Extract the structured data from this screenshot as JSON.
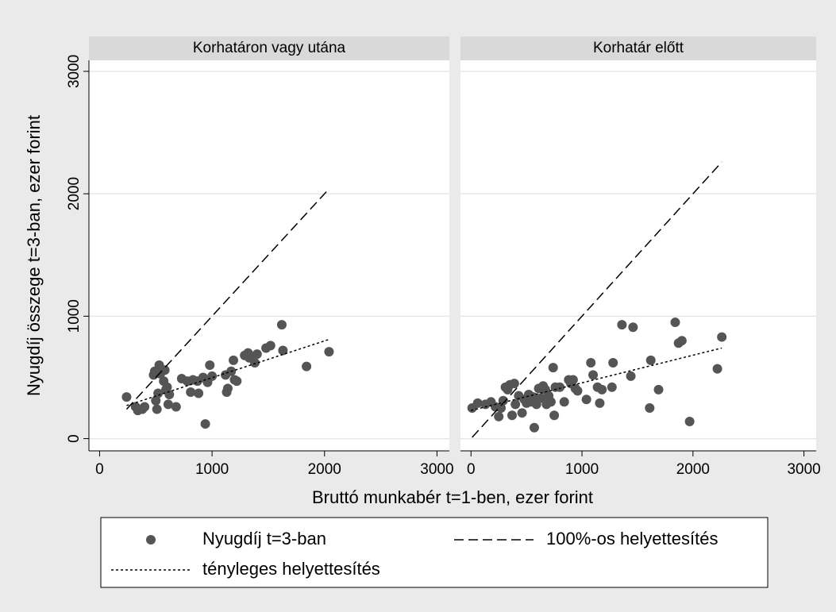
{
  "chart_data": [
    {
      "type": "scatter",
      "title": "Korhatáron vagy utána",
      "xlim": [
        -95,
        3110
      ],
      "ylim": [
        -100,
        3090
      ],
      "xticks": [
        0,
        1000,
        2000,
        3000
      ],
      "yticks": [
        0,
        1000,
        2000,
        3000
      ],
      "grid": true,
      "series": [
        {
          "name": "Nyugdíj t=3-ban",
          "color": "#555555",
          "style": "points",
          "x": [
            240,
            320,
            340,
            380,
            400,
            480,
            490,
            500,
            510,
            520,
            530,
            540,
            570,
            580,
            590,
            600,
            610,
            620,
            680,
            730,
            780,
            810,
            830,
            870,
            880,
            920,
            940,
            960,
            980,
            1000,
            1120,
            1130,
            1140,
            1170,
            1190,
            1200,
            1220,
            1290,
            1320,
            1330,
            1380,
            1400,
            1480,
            1520,
            1620,
            1630,
            1840,
            2040
          ],
          "values": [
            340,
            260,
            230,
            240,
            260,
            520,
            550,
            310,
            240,
            370,
            600,
            530,
            470,
            560,
            400,
            420,
            280,
            360,
            260,
            490,
            470,
            380,
            480,
            470,
            370,
            500,
            120,
            460,
            600,
            510,
            520,
            380,
            410,
            550,
            640,
            480,
            470,
            680,
            700,
            660,
            620,
            690,
            740,
            760,
            930,
            720,
            590,
            710
          ]
        },
        {
          "name": "100%-os helyettesítés",
          "color": "#000000",
          "style": "dashed",
          "x": [
            240,
            2040
          ],
          "values": [
            240,
            2040
          ]
        },
        {
          "name": "tényleges helyettesítés",
          "color": "#000000",
          "style": "dotted",
          "x": [
            240,
            2040
          ],
          "values": [
            270,
            810
          ]
        }
      ]
    },
    {
      "type": "scatter",
      "title": "Korhatár előtt",
      "xlim": [
        -95,
        3110
      ],
      "ylim": [
        -100,
        3090
      ],
      "xticks": [
        0,
        1000,
        2000,
        3000
      ],
      "yticks": [
        0,
        1000,
        2000,
        3000
      ],
      "grid": true,
      "series": [
        {
          "name": "Nyugdíj t=3-ban",
          "color": "#555555",
          "style": "points",
          "x": [
            10,
            60,
            130,
            180,
            220,
            250,
            270,
            290,
            310,
            330,
            350,
            370,
            390,
            400,
            430,
            460,
            480,
            500,
            520,
            540,
            560,
            570,
            590,
            610,
            630,
            650,
            670,
            680,
            700,
            720,
            740,
            750,
            760,
            800,
            840,
            880,
            900,
            920,
            940,
            960,
            1040,
            1080,
            1100,
            1140,
            1160,
            1180,
            1270,
            1280,
            1360,
            1440,
            1460,
            1610,
            1620,
            1690,
            1840,
            1870,
            1900,
            1970,
            2220,
            2260
          ],
          "values": [
            250,
            290,
            280,
            300,
            260,
            180,
            250,
            310,
            420,
            400,
            440,
            190,
            450,
            280,
            350,
            210,
            320,
            290,
            360,
            300,
            340,
            90,
            280,
            410,
            330,
            430,
            400,
            280,
            350,
            300,
            580,
            190,
            420,
            420,
            300,
            480,
            450,
            480,
            410,
            390,
            320,
            620,
            520,
            420,
            290,
            400,
            420,
            620,
            930,
            510,
            910,
            250,
            640,
            400,
            950,
            780,
            800,
            140,
            570,
            830
          ]
        },
        {
          "name": "100%-os helyettesítés",
          "color": "#000000",
          "style": "dashed",
          "x": [
            10,
            2260
          ],
          "values": [
            10,
            2260
          ]
        },
        {
          "name": "tényleges helyettesítés",
          "color": "#000000",
          "style": "dotted",
          "x": [
            0,
            2260
          ],
          "values": [
            230,
            740
          ]
        }
      ]
    }
  ],
  "xlabel": "Bruttó munkabér t=1-ben, ezer forint",
  "ylabel": "Nyugdíj összege t=3-ban, ezer forint"
}
